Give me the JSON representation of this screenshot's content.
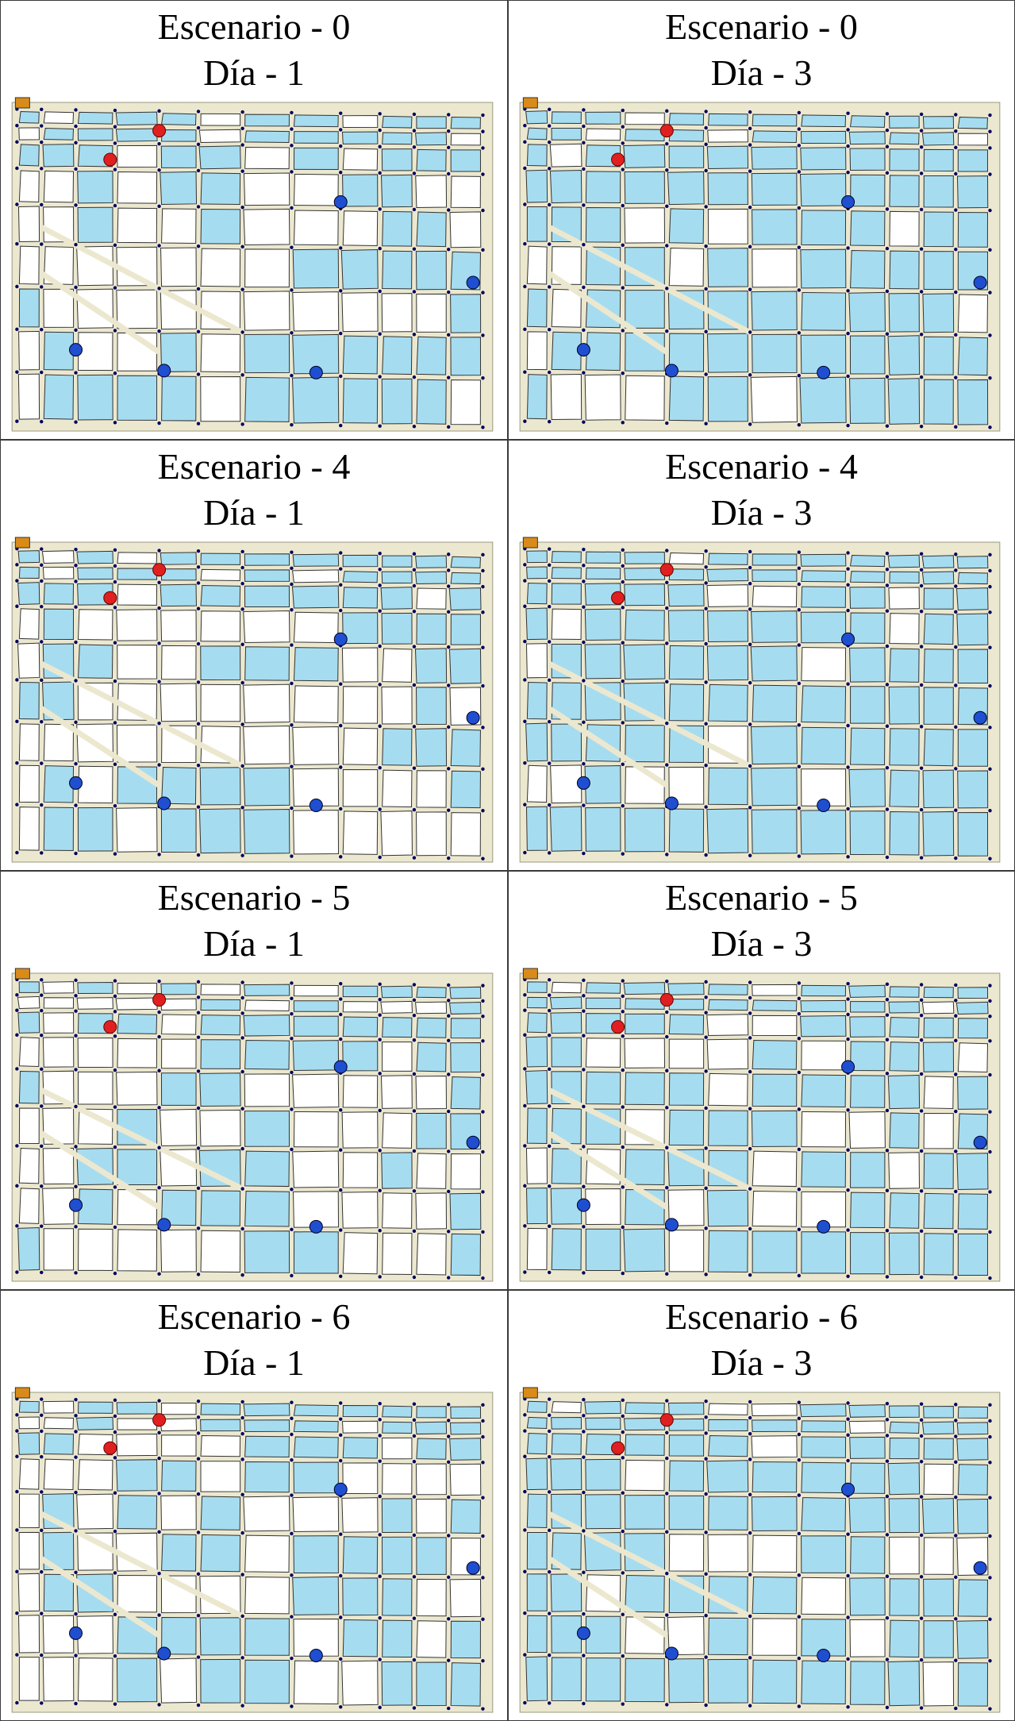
{
  "panels": [
    {
      "scenario": "Escenario - 0",
      "day": "Día - 1",
      "flood": 0.28
    },
    {
      "scenario": "Escenario - 0",
      "day": "Día - 3",
      "flood": 0.93
    },
    {
      "scenario": "Escenario - 4",
      "day": "Día - 1",
      "flood": 0.3
    },
    {
      "scenario": "Escenario - 4",
      "day": "Día - 3",
      "flood": 0.96
    },
    {
      "scenario": "Escenario - 5",
      "day": "Día - 1",
      "flood": 0.3
    },
    {
      "scenario": "Escenario - 5",
      "day": "Día - 3",
      "flood": 0.88
    },
    {
      "scenario": "Escenario - 6",
      "day": "Día - 1",
      "flood": 0.32
    },
    {
      "scenario": "Escenario - 6",
      "day": "Día - 3",
      "flood": 0.88
    }
  ],
  "colors": {
    "flooded_block": "#a6dcf0",
    "dry_block": "#ffffff",
    "block_outline": "#333333",
    "street": "#ece8cf",
    "node": "#000060",
    "source_point": "#e02020",
    "sink_point": "#1f4fd0",
    "facility": "#d98b1a"
  },
  "icons": {
    "source": "red-point-icon",
    "sink": "blue-point-icon",
    "facility": "orange-square-icon"
  }
}
